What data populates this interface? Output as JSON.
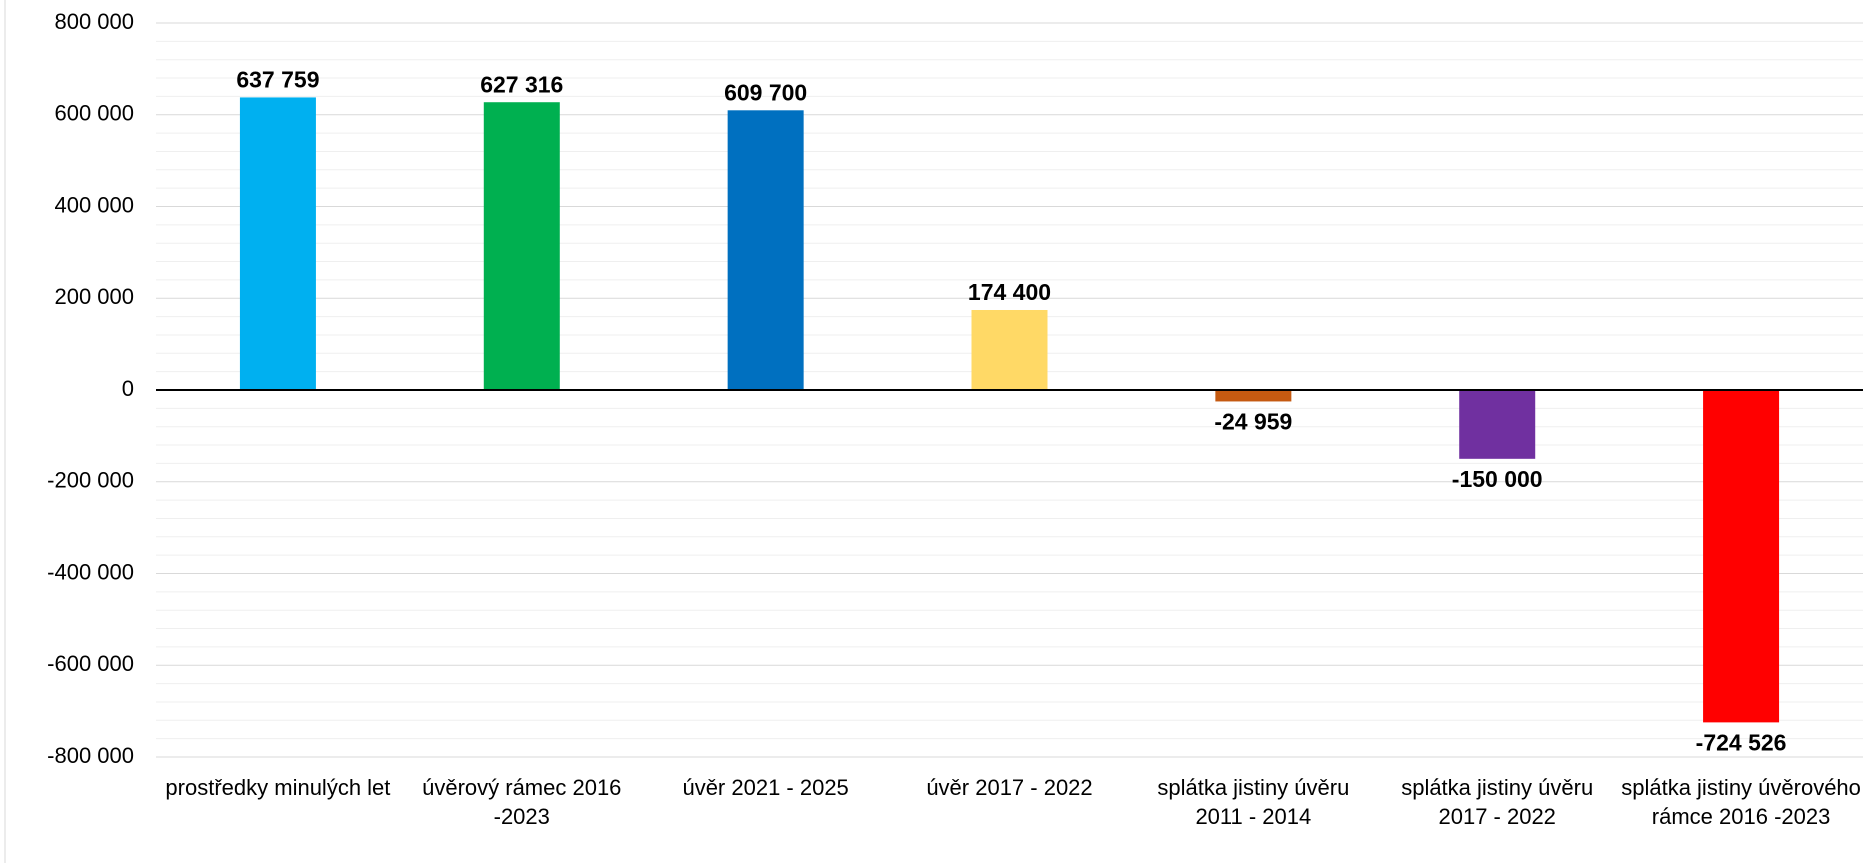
{
  "chart_data": {
    "type": "bar",
    "categories": [
      "prostředky minulých let",
      "úvěrový rámec 2016 -2023",
      "úvěr 2021 - 2025",
      "úvěr 2017 - 2022",
      "splátka jistiny úvěru 2011 - 2014",
      "splátka jistiny úvěru 2017 - 2022",
      "splátka jistiny úvěrového rámce 2016 -2023"
    ],
    "values": [
      637759,
      627316,
      609700,
      174400,
      -24959,
      -150000,
      -724526
    ],
    "value_labels": [
      "637 759",
      "627 316",
      "609 700",
      "174 400",
      "-24 959",
      "-150 000",
      "-724 526"
    ],
    "colors": [
      "#00b0f0",
      "#00b050",
      "#0070c0",
      "#ffd966",
      "#c55a11",
      "#7030a0",
      "#ff0000"
    ],
    "ylim": [
      -800000,
      800000
    ],
    "yticks": [
      {
        "value": -800000,
        "label": "-800 000"
      },
      {
        "value": -600000,
        "label": "-600 000"
      },
      {
        "value": -400000,
        "label": "-400 000"
      },
      {
        "value": -200000,
        "label": "-200 000"
      },
      0,
      {
        "value": 200000,
        "label": "200 000"
      },
      {
        "value": 400000,
        "label": "400 000"
      },
      {
        "value": 600000,
        "label": "600 000"
      },
      {
        "value": 800000,
        "label": "800 000"
      }
    ],
    "grid": true
  }
}
